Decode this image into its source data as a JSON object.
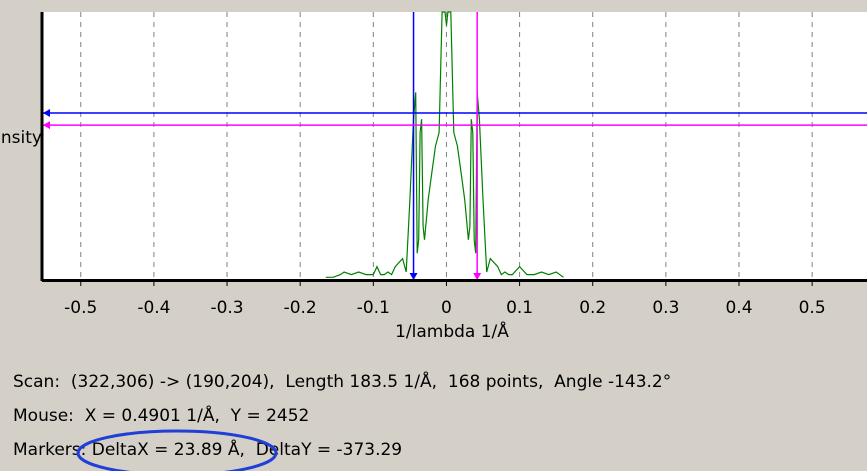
{
  "chart_data": {
    "type": "line",
    "title": "",
    "xlabel": "1/lambda 1/Å",
    "ylabel": "Intensity",
    "xlim": [
      -0.553,
      0.575
    ],
    "x_ticks": [
      -0.5,
      -0.4,
      -0.3,
      -0.2,
      -0.1,
      0,
      0.1,
      0.2,
      0.3,
      0.4,
      0.5
    ],
    "x_tick_labels": [
      "-0.5",
      "-0.4",
      "-0.3",
      "-0.2",
      "-0.1",
      "0",
      "0.1",
      "0.2",
      "0.3",
      "0.4",
      "0.5"
    ],
    "grid": "vertical dashed",
    "series": [
      {
        "color": "#008000",
        "x": [
          -0.165,
          -0.155,
          -0.145,
          -0.14,
          -0.13,
          -0.12,
          -0.11,
          -0.1,
          -0.095,
          -0.09,
          -0.085,
          -0.08,
          -0.075,
          -0.07,
          -0.06,
          -0.055,
          -0.05,
          -0.045,
          -0.042,
          -0.04,
          -0.038,
          -0.036,
          -0.034,
          -0.032,
          -0.03,
          -0.025,
          -0.02,
          -0.015,
          -0.01,
          -0.006,
          -0.004,
          -0.002,
          0,
          0.002,
          0.004,
          0.006,
          0.01,
          0.015,
          0.02,
          0.025,
          0.03,
          0.032,
          0.034,
          0.036,
          0.038,
          0.04,
          0.042,
          0.045,
          0.05,
          0.055,
          0.06,
          0.07,
          0.075,
          0.08,
          0.085,
          0.09,
          0.1,
          0.11,
          0.12,
          0.13,
          0.14,
          0.15,
          0.16
        ],
        "y": [
          0.01,
          0.01,
          0.02,
          0.03,
          0.02,
          0.03,
          0.02,
          0.02,
          0.05,
          0.02,
          0.02,
          0.03,
          0.02,
          0.05,
          0.08,
          0.03,
          0.3,
          0.6,
          0.7,
          0.1,
          0.15,
          0.55,
          0.6,
          0.2,
          0.15,
          0.3,
          0.4,
          0.5,
          0.55,
          1.0,
          1.0,
          1.0,
          0.95,
          1.0,
          1.0,
          1.0,
          0.55,
          0.5,
          0.4,
          0.3,
          0.15,
          0.2,
          0.6,
          0.55,
          0.15,
          0.1,
          0.7,
          0.6,
          0.3,
          0.03,
          0.08,
          0.05,
          0.02,
          0.03,
          0.02,
          0.02,
          0.05,
          0.02,
          0.02,
          0.03,
          0.02,
          0.03,
          0.01
        ]
      }
    ],
    "markers": [
      {
        "x": -0.045,
        "y": 0.623,
        "color": "#0000ff"
      },
      {
        "x": 0.042,
        "y": 0.578,
        "color": "#ff00ff"
      }
    ]
  },
  "status": {
    "scan": "Scan:  (322,306) -> (190,204),  Length 183.5 1/Å,  168 points,  Angle -143.2°",
    "mouse": "Mouse:  X = 0.4901 1/Å,  Y = 2452",
    "markers": "Markers: DeltaX = 23.89 Å,  DeltaY = -373.29"
  },
  "colors": {
    "background": "#d4d0c8",
    "plot_area": "#ffffff",
    "grid": "#808080",
    "trace": "#008000",
    "marker_a": "#0000ff",
    "marker_b": "#ff00ff",
    "highlight_ellipse": "#1f3fd6"
  }
}
